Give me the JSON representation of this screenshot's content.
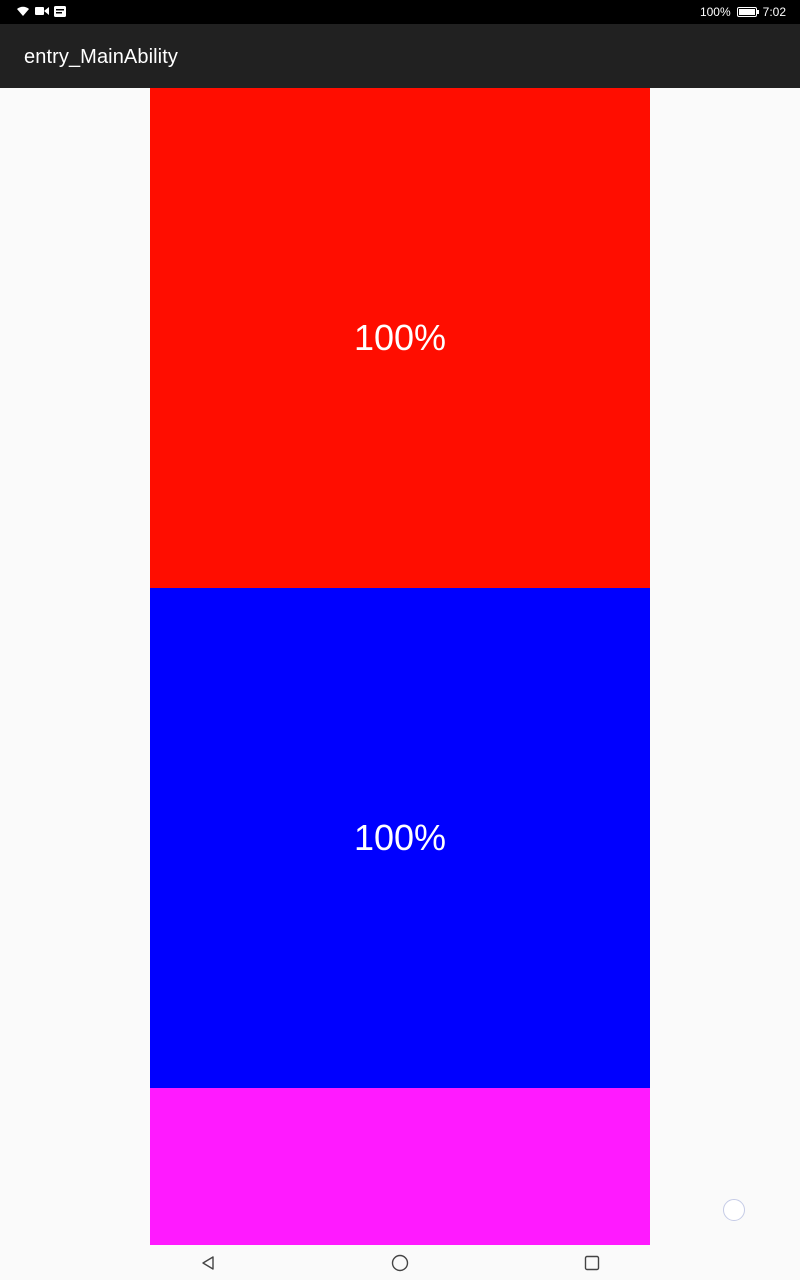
{
  "status_bar": {
    "battery": "100%",
    "time": "7:02",
    "icons": [
      "wifi-icon",
      "video-icon",
      "notification-icon",
      "battery-icon"
    ]
  },
  "title_bar": {
    "title": "entry_MainAbility"
  },
  "blocks": [
    {
      "label": "100%",
      "color": "#ff0d00"
    },
    {
      "label": "100%",
      "color": "#0000ff"
    },
    {
      "label": "",
      "color": "#ff1aff"
    }
  ],
  "nav_bar": {
    "icons": [
      "back-icon",
      "home-icon",
      "recents-icon"
    ]
  },
  "colors": {
    "status_bg": "#000000",
    "title_bg": "#212121",
    "page_bg": "#fafafa"
  }
}
